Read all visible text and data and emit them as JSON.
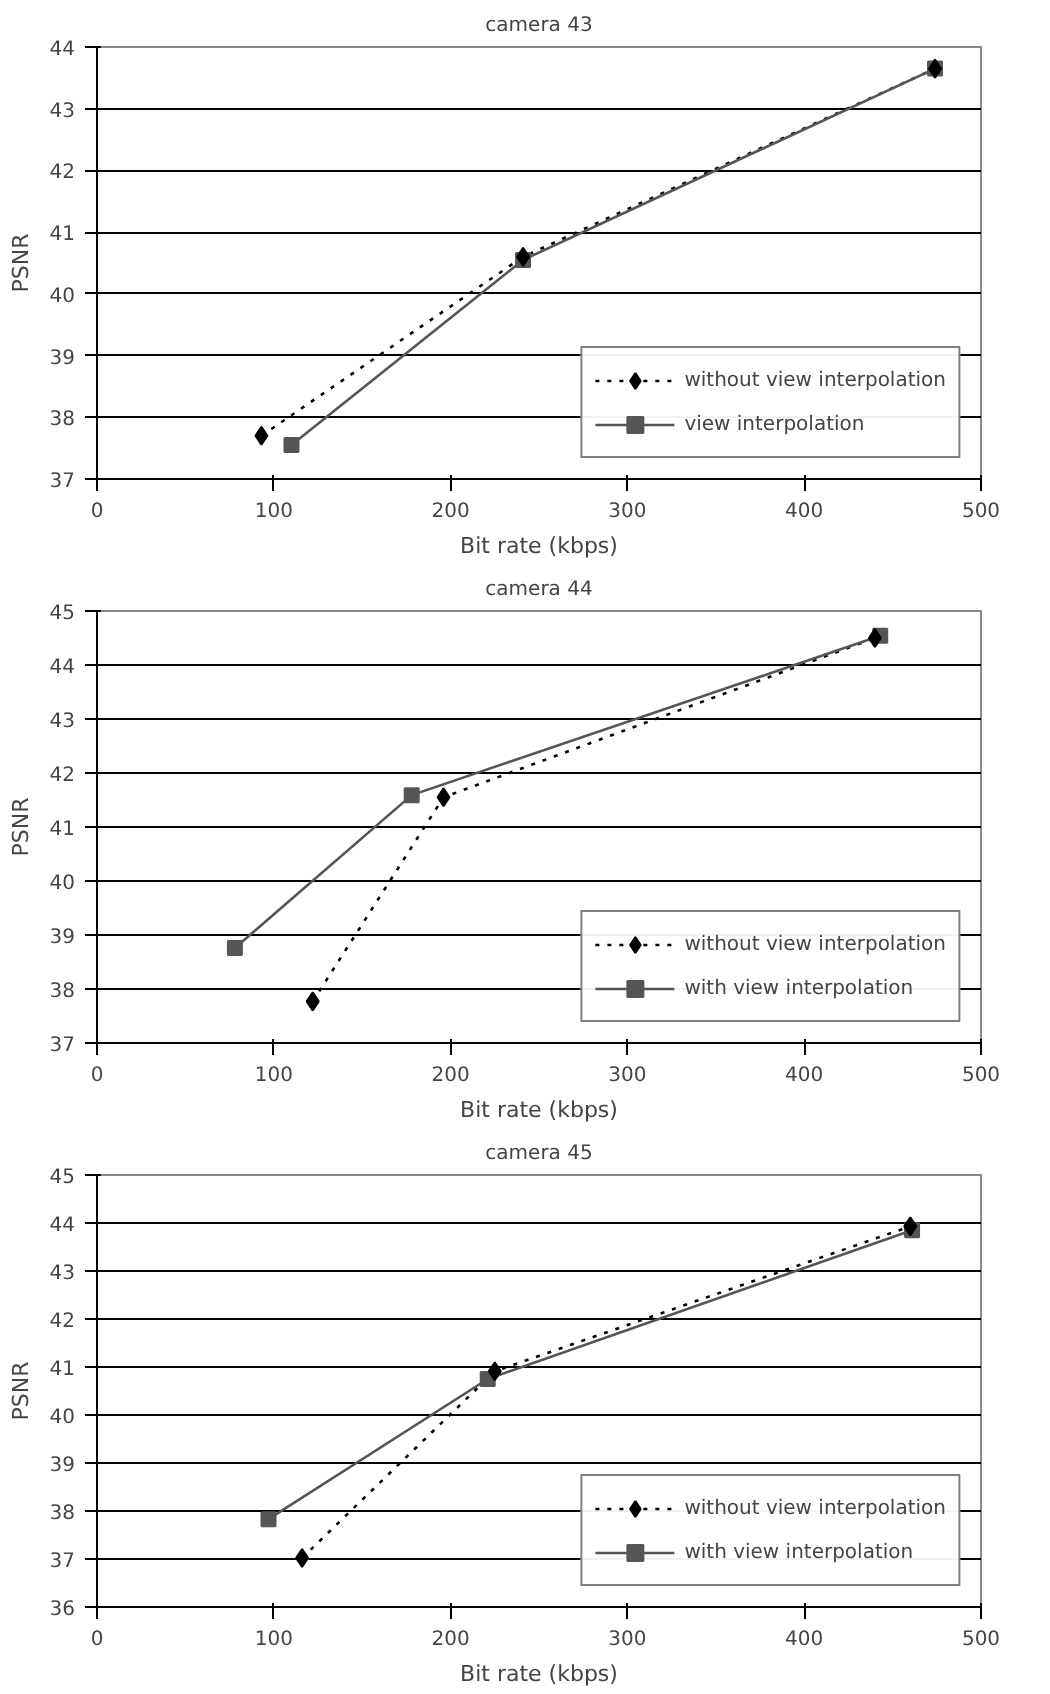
{
  "chart_data": [
    {
      "type": "line",
      "title": "camera 43",
      "xlabel": "Bit rate (kbps)",
      "ylabel": "PSNR",
      "xlim": [
        0,
        500
      ],
      "xticks": [
        0,
        100,
        200,
        300,
        400,
        500
      ],
      "ylim": [
        37,
        44
      ],
      "yticks": [
        37,
        38,
        39,
        40,
        41,
        42,
        43,
        44
      ],
      "grid": "y",
      "legend": "bottom right",
      "series": [
        {
          "name": "without view interpolation",
          "color": "#000000",
          "marker": "diamond",
          "line_style": "dotted",
          "x": [
            93,
            241,
            474
          ],
          "values": [
            37.7,
            40.6,
            43.65
          ]
        },
        {
          "name": "view interpolation",
          "color": "#555555",
          "marker": "square",
          "line_style": "solid",
          "x": [
            110,
            241,
            474
          ],
          "values": [
            37.55,
            40.55,
            43.65
          ]
        }
      ]
    },
    {
      "type": "line",
      "title": "camera 44",
      "xlabel": "Bit rate (kbps)",
      "ylabel": "PSNR",
      "xlim": [
        0,
        500
      ],
      "xticks": [
        0,
        100,
        200,
        300,
        400,
        500
      ],
      "ylim": [
        37,
        45
      ],
      "yticks": [
        37,
        38,
        39,
        40,
        41,
        42,
        43,
        44,
        45
      ],
      "grid": "y",
      "legend": "bottom right",
      "series": [
        {
          "name": "without view interpolation",
          "color": "#000000",
          "marker": "diamond",
          "line_style": "dotted",
          "x": [
            122,
            196,
            440
          ],
          "values": [
            37.77,
            41.55,
            44.5
          ]
        },
        {
          "name": "with view interpolation",
          "color": "#555555",
          "marker": "square",
          "line_style": "solid",
          "x": [
            78,
            178,
            443
          ],
          "values": [
            38.76,
            41.59,
            44.54
          ]
        }
      ]
    },
    {
      "type": "line",
      "title": "camera 45",
      "xlabel": "Bit rate (kbps)",
      "ylabel": "PSNR",
      "xlim": [
        0,
        500
      ],
      "xticks": [
        0,
        100,
        200,
        300,
        400,
        500
      ],
      "ylim": [
        36,
        45
      ],
      "yticks": [
        36,
        37,
        38,
        39,
        40,
        41,
        42,
        43,
        44,
        45
      ],
      "grid": "y",
      "legend": "bottom right",
      "series": [
        {
          "name": "without view interpolation",
          "color": "#000000",
          "marker": "diamond",
          "line_style": "dotted",
          "x": [
            116,
            225,
            460
          ],
          "values": [
            37.02,
            40.91,
            43.93
          ]
        },
        {
          "name": "with view interpolation",
          "color": "#555555",
          "marker": "square",
          "line_style": "solid",
          "x": [
            97,
            221,
            461
          ],
          "values": [
            37.83,
            40.75,
            43.85
          ]
        }
      ]
    }
  ]
}
